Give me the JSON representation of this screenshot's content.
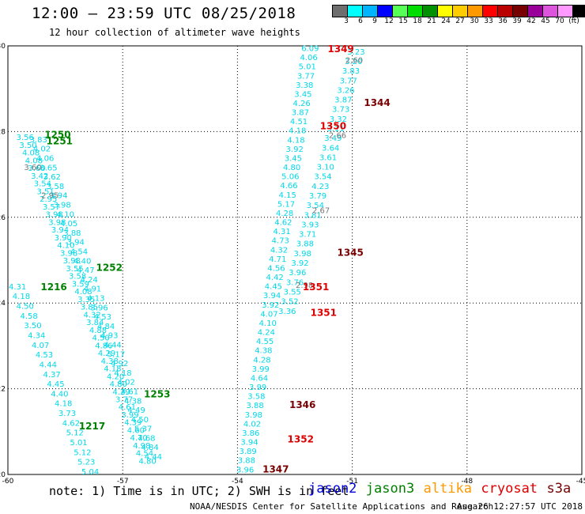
{
  "title": "12:00 – 23:59 UTC 08/25/2018",
  "subtitle": "12 hour collection of altimeter wave heights",
  "color_scale": {
    "colors": [
      "#6e6e6e",
      "#00ffff",
      "#00b4ff",
      "#0000ff",
      "#55ff55",
      "#00dd00",
      "#009000",
      "#ffff00",
      "#ffcc00",
      "#ff9900",
      "#ff0000",
      "#bb0000",
      "#770000",
      "#990099",
      "#dd55dd",
      "#ff99ff",
      "#000000"
    ],
    "labels": [
      "3",
      "6",
      "9",
      "12",
      "15",
      "18",
      "21",
      "24",
      "27",
      "30",
      "33",
      "36",
      "39",
      "42",
      "45",
      "70",
      "(ft)"
    ]
  },
  "note": "note: 1) Time is in UTC; 2) SWH is in feet",
  "satellites": [
    {
      "name": "jason2",
      "color": "#0000dd"
    },
    {
      "name": "jason3",
      "color": "#008000"
    },
    {
      "name": "altika",
      "color": "#ff9900"
    },
    {
      "name": "cryosat",
      "color": "#dd0000"
    },
    {
      "name": "s3a",
      "color": "#770000"
    }
  ],
  "footer_left": "NOAA/NESDIS Center for Satellite Applications and Research",
  "footer_right": "Aug 26 12:27:57 UTC 2018",
  "chart_data": {
    "type": "scatter",
    "xlim": [
      -60,
      -45
    ],
    "ylim": [
      20,
      30
    ],
    "xticks": [
      "-60",
      "-57",
      "-54",
      "-51",
      "-48",
      "-45"
    ],
    "yticks": [
      "20",
      "22",
      "24",
      "26",
      "28",
      "30"
    ],
    "grid": true,
    "tracks": [
      {
        "name": "track-a",
        "color": "#00d8e8",
        "lon_start": -59.55,
        "lat_start": 27.8,
        "lon_end": -56.35,
        "lat_end": 20.25,
        "values": [
          "3.56",
          "3.50",
          "4.08",
          "4.08",
          "3.60",
          "3.42",
          "3.54",
          "3.51",
          "2.95",
          "3.57",
          "3.98",
          "3.98",
          "3.94",
          "3.90",
          "4.10",
          "3.98",
          "3.98",
          "3.55",
          "3.58",
          "3.59",
          "4.08",
          "3.35",
          "3.85",
          "4.32",
          "3.84",
          "4.88",
          "4.50",
          "4.86",
          "4.29",
          "4.38",
          "4.18",
          "4.20",
          "4.80",
          "4.29",
          "3.77",
          "4.61",
          "3.99",
          "4.39",
          "4.60",
          "4.70",
          "4.98",
          "4.54",
          "4.80"
        ]
      },
      {
        "name": "track-b",
        "color": "#00d8e8",
        "lon_start": -59.2,
        "lat_start": 27.75,
        "lon_end": -56.2,
        "lat_end": 20.35,
        "values": [
          "3.83",
          "4.02",
          "4.06",
          "3.65",
          "3.62",
          "3.58",
          "3.94",
          "3.98",
          "4.10",
          "4.05",
          "3.88",
          "3.94",
          "4.54",
          "4.40",
          "4.47",
          "4.24",
          "4.91",
          "4.13",
          "3.96",
          "4.53",
          "4.84",
          "4.93",
          "4.44",
          "5.17",
          "4.92",
          "4.18",
          "4.02",
          "4.61",
          "4.38",
          "4.49",
          "4.50",
          "5.37",
          "4.68",
          "4.84",
          "4.44"
        ]
      },
      {
        "name": "track-c",
        "color": "#00d8e8",
        "lon_start": -59.75,
        "lat_start": 24.32,
        "lon_end": -57.85,
        "lat_end": 20.0,
        "values": [
          "4.31",
          "4.18",
          "4.50",
          "4.58",
          "3.50",
          "4.34",
          "4.07",
          "4.53",
          "4.44",
          "4.37",
          "4.45",
          "4.40",
          "4.18",
          "3.73",
          "4.62",
          "5.12",
          "5.01",
          "5.12",
          "5.23",
          "5.04"
        ]
      },
      {
        "name": "track-d",
        "color": "#00d8e8",
        "lon_start": -52.1,
        "lat_start": 29.88,
        "lon_end": -53.8,
        "lat_end": 20.05,
        "values": [
          "6.09",
          "4.06",
          "5.01",
          "3.77",
          "3.38",
          "3.45",
          "4.26",
          "3.87",
          "4.51",
          "4.18",
          "4.18",
          "3.92",
          "3.45",
          "4.80",
          "5.06",
          "4.66",
          "4.15",
          "5.17",
          "4.28",
          "4.62",
          "4.31",
          "4.73",
          "4.32",
          "4.71",
          "4.56",
          "4.42",
          "4.45",
          "3.94",
          "3.92",
          "4.07",
          "4.10",
          "4.24",
          "4.55",
          "4.38",
          "4.28",
          "3.99",
          "4.64",
          "3.99",
          "3.58",
          "3.88",
          "3.98",
          "4.02",
          "3.86",
          "3.94",
          "3.89",
          "3.88",
          "3.96"
        ]
      },
      {
        "name": "track-e",
        "color": "#00d8e8",
        "lon_start": -50.9,
        "lat_start": 29.8,
        "lon_end": -52.7,
        "lat_end": 23.75,
        "values": [
          "3.23",
          "3.20",
          "3.83",
          "3.77",
          "3.26",
          "3.87",
          "3.73",
          "3.32",
          "3.11",
          "3.49",
          "3.64",
          "3.61",
          "3.10",
          "3.54",
          "4.23",
          "3.79",
          "3.54",
          "3.81",
          "3.93",
          "3.71",
          "3.88",
          "3.98",
          "3.92",
          "3.96",
          "3.76",
          "3.55",
          "3.52",
          "3.36"
        ]
      },
      {
        "name": "track-e-gray",
        "color": "#777777",
        "lon_start": -50.95,
        "lat_start": 29.6,
        "lon_end": -52.25,
        "lat_end": 24.35,
        "values": [
          "2.60",
          "2.66",
          "2.67",
          "2.98"
        ]
      },
      {
        "name": "track-a-gray",
        "color": "#777777",
        "lon_start": -59.35,
        "lat_start": 27.1,
        "lon_end": -58.9,
        "lat_end": 26.45,
        "values": [
          "3.60",
          "2.95"
        ]
      }
    ],
    "time_labels": [
      {
        "text": "1250",
        "lon": -58.7,
        "lat": 27.85,
        "color": "#008000"
      },
      {
        "text": "1251",
        "lon": -58.65,
        "lat": 27.7,
        "color": "#008000"
      },
      {
        "text": "1252",
        "lon": -57.35,
        "lat": 24.75,
        "color": "#008000"
      },
      {
        "text": "1216",
        "lon": -58.8,
        "lat": 24.3,
        "color": "#008000"
      },
      {
        "text": "1253",
        "lon": -56.1,
        "lat": 21.8,
        "color": "#008000"
      },
      {
        "text": "1217",
        "lon": -57.8,
        "lat": 21.05,
        "color": "#008000"
      },
      {
        "text": "1349",
        "lon": -51.3,
        "lat": 29.85,
        "color": "#dd0000"
      },
      {
        "text": "1344",
        "lon": -50.35,
        "lat": 28.6,
        "color": "#770000"
      },
      {
        "text": "1350",
        "lon": -51.5,
        "lat": 28.05,
        "color": "#dd0000"
      },
      {
        "text": "1345",
        "lon": -51.05,
        "lat": 25.1,
        "color": "#770000"
      },
      {
        "text": "1351",
        "lon": -51.95,
        "lat": 24.3,
        "color": "#dd0000"
      },
      {
        "text": "1351",
        "lon": -51.75,
        "lat": 23.7,
        "color": "#dd0000"
      },
      {
        "text": "1346",
        "lon": -52.3,
        "lat": 21.55,
        "color": "#770000"
      },
      {
        "text": "1352",
        "lon": -52.35,
        "lat": 20.75,
        "color": "#dd0000"
      },
      {
        "text": "1347",
        "lon": -53.0,
        "lat": 20.05,
        "color": "#770000"
      }
    ]
  }
}
